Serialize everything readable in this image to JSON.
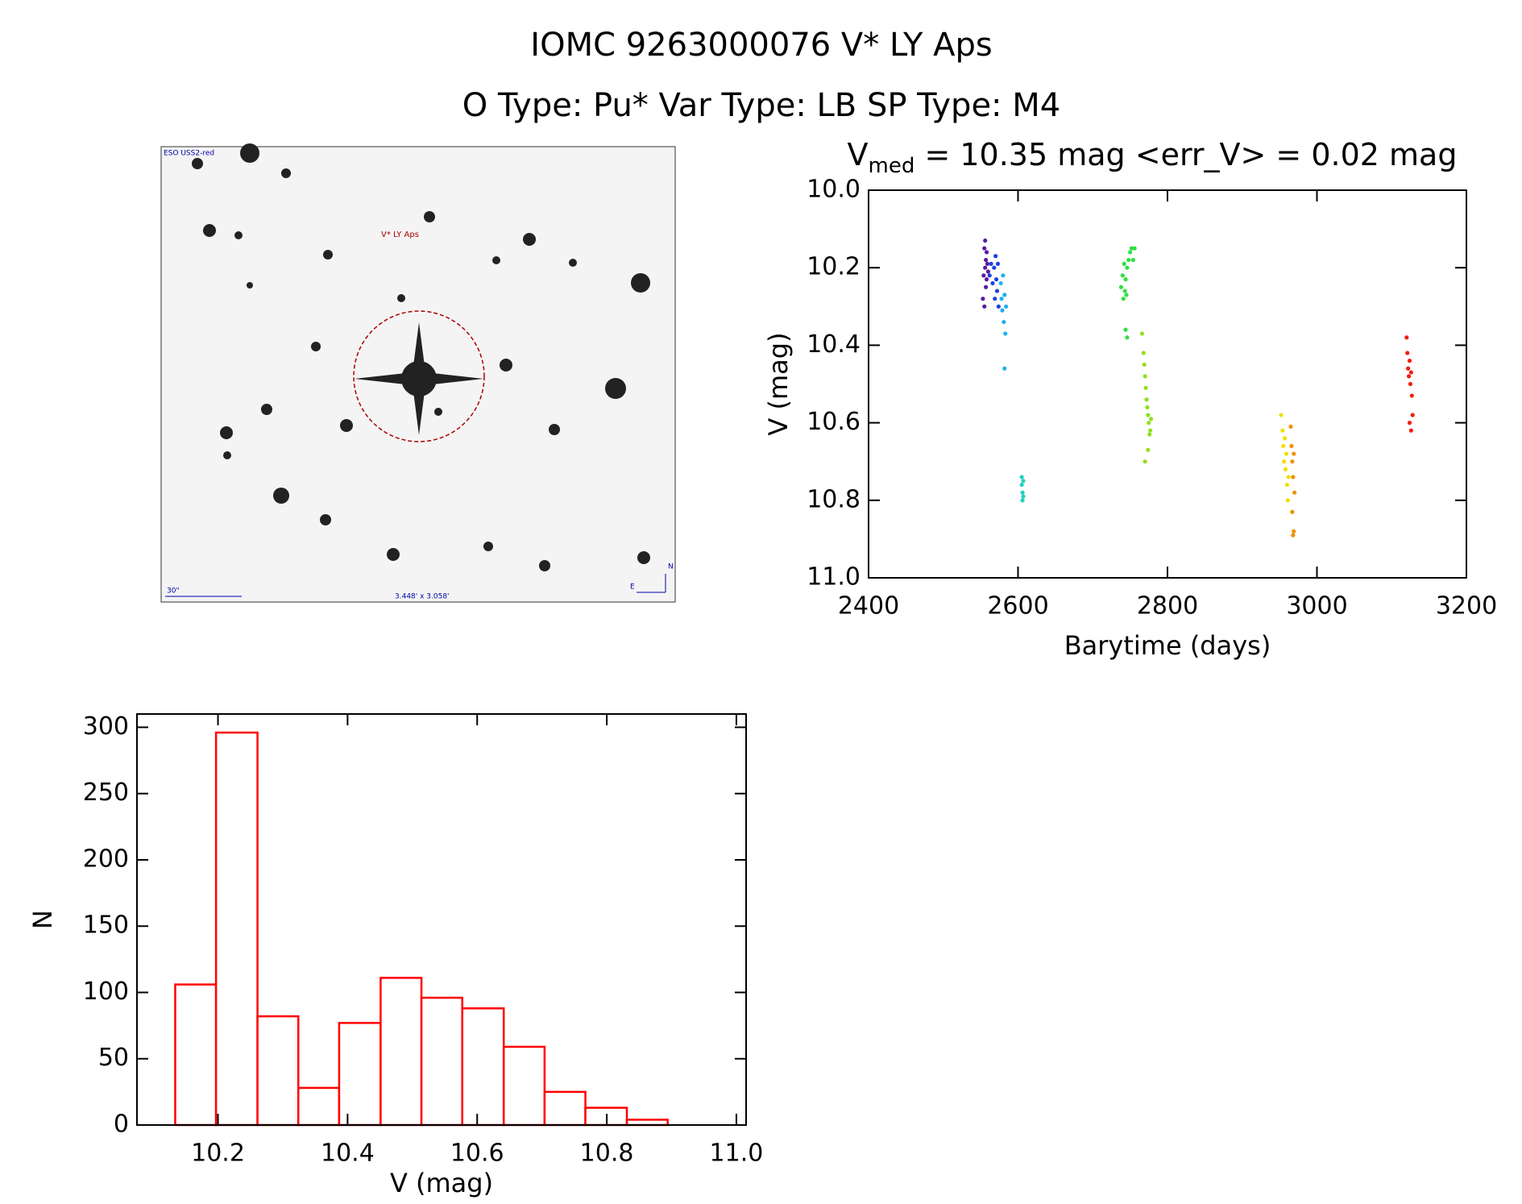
{
  "title": "IOMC 9263000076   V* LY Aps",
  "subtitle": "O Type: Pu*  Var Type: LB  SP Type: M4",
  "image": {
    "survey": "ESO USS2-red",
    "target": "V* LY Aps",
    "scale": "30\"",
    "fov": "3.448' x 3.058'",
    "north": "N",
    "east": "E"
  },
  "chart_data": [
    {
      "type": "scatter",
      "title": {
        "main": "V",
        "sub": "med",
        "rest": " = 10.35 mag <err_V> = 0.02 mag"
      },
      "x_label": "Barytime (days)",
      "y_label": "V (mag)",
      "xlim": [
        2400,
        3200
      ],
      "xticks": [
        2400,
        2600,
        2800,
        3000,
        3200
      ],
      "ylim": [
        10.0,
        11.0
      ],
      "y_inverted": true,
      "yticks": [
        {
          "value": 10.0,
          "label": "10.0"
        },
        10.2,
        10.4,
        10.6,
        10.8,
        {
          "value": 11.0,
          "label": "11.0"
        }
      ],
      "series": [
        {
          "color": "#5a1aa0",
          "x": [
            2553,
            2554,
            2555,
            2555,
            2556,
            2556,
            2557,
            2557,
            2558,
            2558,
            2559,
            2560
          ],
          "values": [
            10.28,
            10.22,
            10.15,
            10.3,
            10.13,
            10.2,
            10.18,
            10.25,
            10.16,
            10.23,
            10.19,
            10.21
          ]
        },
        {
          "color": "#2040e0",
          "x": [
            2562,
            2564,
            2566,
            2568,
            2569,
            2570,
            2571,
            2572,
            2573,
            2574
          ],
          "values": [
            10.22,
            10.19,
            10.24,
            10.2,
            10.28,
            10.17,
            10.23,
            10.26,
            10.19,
            10.3
          ]
        },
        {
          "color": "#20b0f0",
          "x": [
            2577,
            2578,
            2579,
            2580,
            2581,
            2582,
            2583,
            2584,
            2582
          ],
          "values": [
            10.24,
            10.28,
            10.31,
            10.22,
            10.34,
            10.27,
            10.37,
            10.3,
            10.46
          ]
        },
        {
          "color": "#20d0c0",
          "x": [
            2605,
            2605,
            2606,
            2606,
            2607,
            2607
          ],
          "values": [
            10.74,
            10.76,
            10.78,
            10.8,
            10.75,
            10.79
          ]
        },
        {
          "color": "#30e040",
          "x": [
            2738,
            2740,
            2741,
            2742,
            2743,
            2744,
            2745,
            2746,
            2748,
            2750,
            2752,
            2754,
            2756,
            2744,
            2746
          ],
          "values": [
            10.25,
            10.22,
            10.28,
            10.19,
            10.26,
            10.23,
            10.27,
            10.2,
            10.18,
            10.16,
            10.15,
            10.18,
            10.15,
            10.36,
            10.38
          ]
        },
        {
          "color": "#90e020",
          "x": [
            2766,
            2768,
            2769,
            2770,
            2771,
            2772,
            2773,
            2774,
            2775,
            2776,
            2777,
            2778,
            2774,
            2770
          ],
          "values": [
            10.37,
            10.42,
            10.45,
            10.48,
            10.51,
            10.54,
            10.56,
            10.58,
            10.6,
            10.63,
            10.62,
            10.59,
            10.67,
            10.7
          ]
        },
        {
          "color": "#f0e000",
          "x": [
            2952,
            2954,
            2955,
            2956,
            2957,
            2958,
            2959,
            2960,
            2961,
            2962
          ],
          "values": [
            10.58,
            10.62,
            10.66,
            10.7,
            10.64,
            10.72,
            10.68,
            10.76,
            10.8,
            10.74
          ]
        },
        {
          "color": "#f09000",
          "x": [
            2965,
            2966,
            2967,
            2968,
            2969,
            2970,
            2967,
            2969,
            2968
          ],
          "values": [
            10.61,
            10.66,
            10.7,
            10.74,
            10.68,
            10.78,
            10.83,
            10.88,
            10.89
          ]
        },
        {
          "color": "#f02010",
          "x": [
            3120,
            3121,
            3122,
            3123,
            3124,
            3125,
            3126,
            3127,
            3128,
            3124,
            3126
          ],
          "values": [
            10.38,
            10.42,
            10.46,
            10.48,
            10.44,
            10.5,
            10.47,
            10.53,
            10.58,
            10.6,
            10.62
          ]
        }
      ]
    },
    {
      "type": "histogram",
      "x_label": "V (mag)",
      "y_label": "N",
      "color": "#ff0000",
      "bins": [
        10.134,
        10.197,
        10.261,
        10.324,
        10.387,
        10.451,
        10.514,
        10.577,
        10.641,
        10.704,
        10.767,
        10.831,
        10.894
      ],
      "values": [
        106,
        296,
        82,
        28,
        77,
        111,
        96,
        88,
        59,
        25,
        13,
        4
      ],
      "xlim": [
        10.075,
        11.015
      ],
      "xticks": [
        10.2,
        10.4,
        10.6,
        10.8,
        {
          "value": 11.0,
          "label": "11.0"
        }
      ],
      "ylim": [
        0,
        310
      ],
      "yticks": [
        0,
        50,
        100,
        150,
        200,
        250,
        300
      ]
    }
  ]
}
